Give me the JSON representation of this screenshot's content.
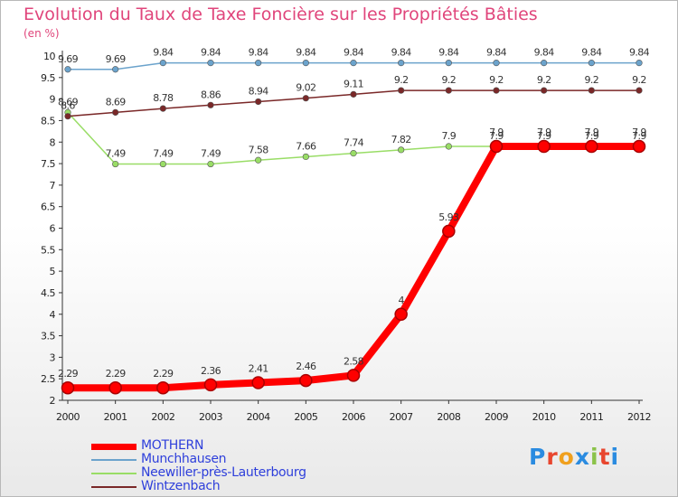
{
  "header": {
    "title": "Evolution du Taux de Taxe Foncière sur les Propriétés Bâties",
    "unit": "(en %)"
  },
  "logo": {
    "text": "Proxiti",
    "colors": [
      "#2a8be0",
      "#e8462e",
      "#f0a01e",
      "#2a8be0",
      "#8bc34a",
      "#e8462e",
      "#2a8be0"
    ]
  },
  "chart_data": {
    "type": "line",
    "x": [
      "2000",
      "2001",
      "2002",
      "2003",
      "2004",
      "2005",
      "2006",
      "2007",
      "2008",
      "2009",
      "2010",
      "2011",
      "2012"
    ],
    "ylim": [
      2,
      10
    ],
    "yticks": [
      2,
      2.5,
      3,
      3.5,
      4,
      4.5,
      5,
      5.5,
      6,
      6.5,
      7,
      7.5,
      8,
      8.5,
      9,
      9.5,
      10
    ],
    "grid": false,
    "legend_position": "bottom-left",
    "series": [
      {
        "name": "MOTHERN",
        "color": "#ff0000",
        "values": [
          2.29,
          2.29,
          2.29,
          2.36,
          2.41,
          2.46,
          2.58,
          4,
          5.93,
          7.9,
          7.9,
          7.9,
          7.9
        ],
        "labels": [
          "2.29",
          "2.29",
          "2.29",
          "2.36",
          "2.41",
          "2.46",
          "2.58",
          "4",
          "5.93",
          "7.9",
          "7.9",
          "7.9",
          "7.9"
        ],
        "emphasis": true
      },
      {
        "name": "Munchhausen",
        "color": "#6ba3cc",
        "values": [
          9.69,
          9.69,
          9.84,
          9.84,
          9.84,
          9.84,
          9.84,
          9.84,
          9.84,
          9.84,
          9.84,
          9.84,
          9.84
        ],
        "labels": [
          "9.69",
          "9.69",
          "9.84",
          "9.84",
          "9.84",
          "9.84",
          "9.84",
          "9.84",
          "9.84",
          "9.84",
          "9.84",
          "9.84",
          "9.84"
        ]
      },
      {
        "name": "Neewiller-près-Lauterbourg",
        "color": "#99dd66",
        "values": [
          8.69,
          7.49,
          7.49,
          7.49,
          7.58,
          7.66,
          7.74,
          7.82,
          7.9,
          7.9,
          7.9,
          7.9,
          7.9
        ],
        "labels": [
          "8.69",
          "7.49",
          "7.49",
          "7.49",
          "7.58",
          "7.66",
          "7.74",
          "7.82",
          "7.9",
          "7.9",
          "7.9",
          "7.9",
          "7.9"
        ]
      },
      {
        "name": "Wintzenbach",
        "color": "#7a2828",
        "values": [
          8.6,
          8.69,
          8.78,
          8.86,
          8.94,
          9.02,
          9.11,
          9.2,
          9.2,
          9.2,
          9.2,
          9.2,
          9.2
        ],
        "labels": [
          "8.6",
          "8.69",
          "8.78",
          "8.86",
          "8.94",
          "9.02",
          "9.11",
          "9.2",
          "9.2",
          "9.2",
          "9.2",
          "9.2",
          "9.2"
        ]
      }
    ]
  }
}
